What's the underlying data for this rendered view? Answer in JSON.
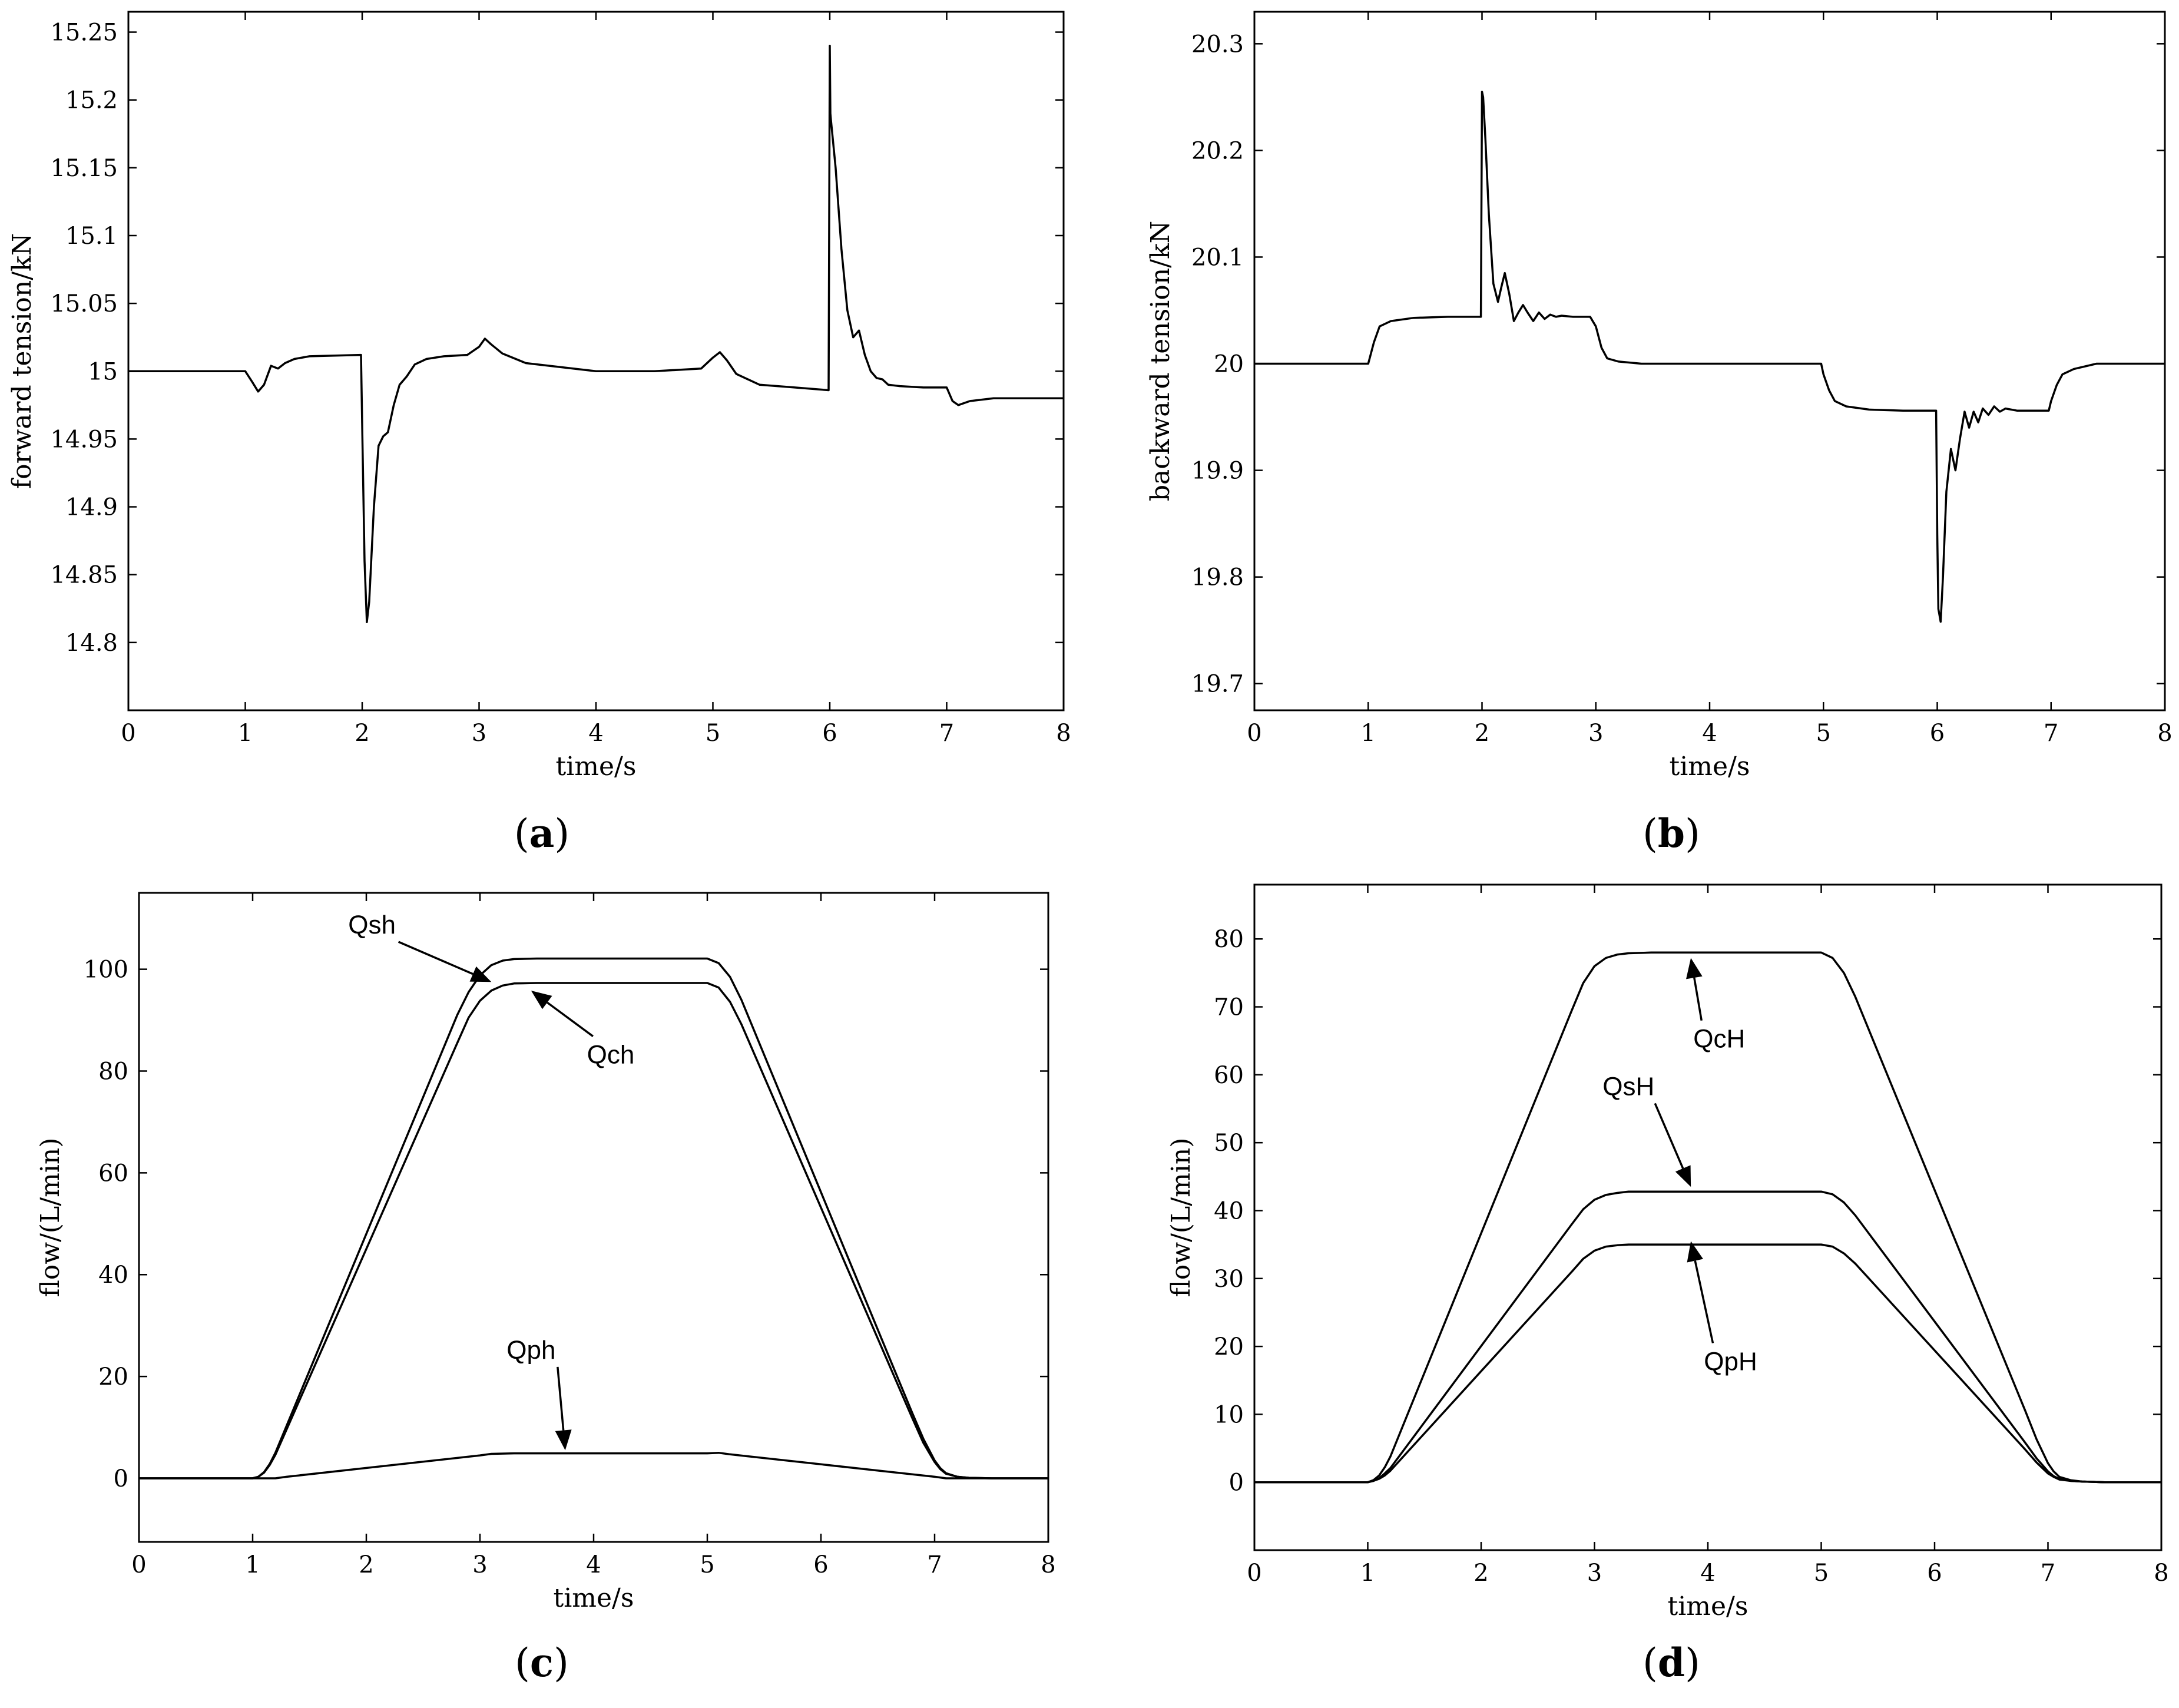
{
  "chart_data": [
    {
      "id": "a",
      "type": "line",
      "panel_label": "a",
      "xlabel": "time/s",
      "ylabel": "forward tension/kN",
      "xlim": [
        0,
        8
      ],
      "ylim": [
        14.75,
        15.265
      ],
      "xticks": [
        0,
        1,
        2,
        3,
        4,
        5,
        6,
        7,
        8
      ],
      "xtick_labels": [
        "0",
        "1",
        "2",
        "3",
        "4",
        "5",
        "6",
        "7",
        "8"
      ],
      "yticks": [
        14.8,
        14.85,
        14.9,
        14.95,
        15.0,
        15.05,
        15.1,
        15.15,
        15.2,
        15.25
      ],
      "ytick_labels": [
        "14.8",
        "14.85",
        "14.9",
        "14.95",
        "15",
        "15.05",
        "15.1",
        "15.15",
        "15.2",
        "15.25"
      ],
      "series": [
        {
          "name": "forward tension",
          "x": [
            0,
            1.0,
            1.06,
            1.11,
            1.16,
            1.22,
            1.28,
            1.34,
            1.42,
            1.55,
            1.99,
            2.0,
            2.02,
            2.04,
            2.06,
            2.1,
            2.14,
            2.18,
            2.22,
            2.27,
            2.32,
            2.38,
            2.45,
            2.55,
            2.7,
            2.9,
            3.0,
            3.05,
            3.1,
            3.2,
            3.4,
            3.7,
            4.0,
            4.5,
            4.9,
            5.0,
            5.06,
            5.12,
            5.2,
            5.4,
            5.7,
            5.99,
            6.0,
            6.005,
            6.01,
            6.05,
            6.1,
            6.15,
            6.2,
            6.25,
            6.3,
            6.35,
            6.4,
            6.45,
            6.5,
            6.6,
            6.8,
            7.0,
            7.05,
            7.1,
            7.2,
            7.4,
            8.0
          ],
          "values": [
            15.0,
            15.0,
            14.992,
            14.985,
            14.99,
            15.004,
            15.002,
            15.006,
            15.009,
            15.011,
            15.012,
            14.96,
            14.86,
            14.815,
            14.83,
            14.9,
            14.945,
            14.952,
            14.955,
            14.975,
            14.99,
            14.996,
            15.005,
            15.009,
            15.011,
            15.012,
            15.018,
            15.024,
            15.02,
            15.013,
            15.006,
            15.003,
            15.0,
            15.0,
            15.002,
            15.01,
            15.014,
            15.008,
            14.998,
            14.99,
            14.988,
            14.986,
            15.24,
            15.19,
            15.185,
            15.15,
            15.09,
            15.045,
            15.025,
            15.03,
            15.012,
            15.0,
            14.995,
            14.994,
            14.99,
            14.989,
            14.988,
            14.988,
            14.978,
            14.975,
            14.978,
            14.98,
            14.98
          ]
        }
      ]
    },
    {
      "id": "b",
      "type": "line",
      "panel_label": "b",
      "xlabel": "time/s",
      "ylabel": "backward tension/kN",
      "xlim": [
        0,
        8
      ],
      "ylim": [
        19.675,
        20.33
      ],
      "xticks": [
        0,
        1,
        2,
        3,
        4,
        5,
        6,
        7,
        8
      ],
      "xtick_labels": [
        "0",
        "1",
        "2",
        "3",
        "4",
        "5",
        "6",
        "7",
        "8"
      ],
      "yticks": [
        19.7,
        19.8,
        19.9,
        20.0,
        20.1,
        20.2,
        20.3
      ],
      "ytick_labels": [
        "19.7",
        "19.8",
        "19.9",
        "20",
        "20.1",
        "20.2",
        "20.3"
      ],
      "series": [
        {
          "name": "backward tension",
          "x": [
            0,
            1.0,
            1.05,
            1.1,
            1.2,
            1.4,
            1.7,
            1.99,
            2.0,
            2.01,
            2.03,
            2.06,
            2.1,
            2.14,
            2.17,
            2.2,
            2.24,
            2.28,
            2.32,
            2.36,
            2.4,
            2.45,
            2.5,
            2.55,
            2.6,
            2.65,
            2.7,
            2.8,
            2.95,
            3.0,
            3.05,
            3.1,
            3.2,
            3.4,
            3.7,
            4.0,
            4.5,
            4.98,
            5.0,
            5.05,
            5.1,
            5.2,
            5.4,
            5.7,
            5.99,
            6.0,
            6.01,
            6.03,
            6.05,
            6.08,
            6.12,
            6.16,
            6.2,
            6.24,
            6.28,
            6.32,
            6.36,
            6.4,
            6.45,
            6.5,
            6.55,
            6.6,
            6.7,
            6.9,
            6.98,
            7.0,
            7.05,
            7.1,
            7.2,
            7.4,
            8.0
          ],
          "values": [
            20.0,
            20.0,
            20.02,
            20.035,
            20.04,
            20.043,
            20.044,
            20.044,
            20.255,
            20.25,
            20.21,
            20.14,
            20.075,
            20.058,
            20.072,
            20.085,
            20.065,
            20.04,
            20.048,
            20.055,
            20.048,
            20.04,
            20.048,
            20.042,
            20.046,
            20.044,
            20.045,
            20.044,
            20.044,
            20.035,
            20.015,
            20.005,
            20.002,
            20.0,
            20.0,
            20.0,
            20.0,
            20.0,
            19.99,
            19.975,
            19.965,
            19.96,
            19.957,
            19.956,
            19.956,
            19.84,
            19.77,
            19.758,
            19.8,
            19.88,
            19.92,
            19.9,
            19.93,
            19.955,
            19.94,
            19.955,
            19.945,
            19.958,
            19.952,
            19.96,
            19.955,
            19.958,
            19.956,
            19.956,
            19.956,
            19.965,
            19.98,
            19.99,
            19.995,
            20.0,
            20.0
          ]
        }
      ]
    },
    {
      "id": "c",
      "type": "line",
      "panel_label": "c",
      "xlabel": "time/s",
      "ylabel": "flow/(L/min)",
      "xlim": [
        0,
        8
      ],
      "ylim": [
        -12.5,
        115
      ],
      "xticks": [
        0,
        1,
        2,
        3,
        4,
        5,
        6,
        7,
        8
      ],
      "xtick_labels": [
        "0",
        "1",
        "2",
        "3",
        "4",
        "5",
        "6",
        "7",
        "8"
      ],
      "yticks": [
        0,
        20,
        40,
        60,
        80,
        100
      ],
      "ytick_labels": [
        "0",
        "20",
        "40",
        "60",
        "80",
        "100"
      ],
      "series": [
        {
          "name": "Qsh",
          "x": [
            0,
            1.0,
            1.05,
            1.1,
            1.15,
            1.2,
            2.8,
            2.9,
            3.0,
            3.1,
            3.2,
            3.3,
            3.5,
            4.0,
            4.5,
            5.0,
            5.1,
            5.2,
            5.3,
            6.8,
            6.9,
            7.0,
            7.05,
            7.1,
            7.2,
            7.3,
            7.5,
            8.0
          ],
          "values": [
            0,
            0,
            0.3,
            1.2,
            2.8,
            5.0,
            91.0,
            95.5,
            98.8,
            100.8,
            101.7,
            102.0,
            102.1,
            102.1,
            102.1,
            102.1,
            101.2,
            98.5,
            94.0,
            13.0,
            7.8,
            3.5,
            2.0,
            1.0,
            0.3,
            0.1,
            0,
            0
          ]
        },
        {
          "name": "Qch",
          "x": [
            0,
            1.0,
            1.05,
            1.1,
            1.15,
            1.2,
            2.8,
            2.9,
            3.0,
            3.1,
            3.2,
            3.3,
            3.5,
            4.0,
            4.5,
            5.0,
            5.1,
            5.2,
            5.3,
            6.8,
            6.9,
            7.0,
            7.05,
            7.1,
            7.2,
            7.3,
            7.5,
            8.0
          ],
          "values": [
            0,
            0,
            0.3,
            1.1,
            2.6,
            4.6,
            85.5,
            90.5,
            93.8,
            95.8,
            96.8,
            97.2,
            97.3,
            97.3,
            97.3,
            97.3,
            96.4,
            93.6,
            89.2,
            12.0,
            7.0,
            3.2,
            1.8,
            0.9,
            0.3,
            0.1,
            0,
            0
          ]
        },
        {
          "name": "Qph",
          "x": [
            0,
            1.0,
            1.2,
            1.3,
            3.0,
            3.1,
            3.3,
            4.0,
            5.0,
            5.1,
            5.2,
            7.0,
            7.1,
            8.0
          ],
          "values": [
            0,
            0,
            0,
            0.3,
            4.5,
            4.8,
            4.9,
            4.9,
            4.9,
            5.0,
            4.7,
            0.3,
            0,
            0
          ]
        }
      ],
      "annotations": [
        {
          "text": "Qsh",
          "x": 2.05,
          "y": 107,
          "arrow_to": [
            3.1,
            97.5
          ]
        },
        {
          "text": "Qch",
          "x": 4.15,
          "y": 81.5,
          "arrow_to": [
            3.45,
            95.8
          ]
        },
        {
          "text": "Qph",
          "x": 3.45,
          "y": 23.5,
          "arrow_to": [
            3.75,
            5.5
          ]
        }
      ]
    },
    {
      "id": "d",
      "type": "line",
      "panel_label": "d",
      "xlabel": "time/s",
      "ylabel": "flow/(L/min)",
      "xlim": [
        0,
        8
      ],
      "ylim": [
        -10,
        88
      ],
      "xticks": [
        0,
        1,
        2,
        3,
        4,
        5,
        6,
        7,
        8
      ],
      "xtick_labels": [
        "0",
        "1",
        "2",
        "3",
        "4",
        "5",
        "6",
        "7",
        "8"
      ],
      "yticks": [
        0,
        10,
        20,
        30,
        40,
        50,
        60,
        70,
        80
      ],
      "ytick_labels": [
        "0",
        "10",
        "20",
        "30",
        "40",
        "50",
        "60",
        "70",
        "80"
      ],
      "series": [
        {
          "name": "QcH",
          "x": [
            0,
            1.0,
            1.05,
            1.1,
            1.15,
            1.2,
            2.8,
            2.9,
            3.0,
            3.1,
            3.2,
            3.3,
            3.5,
            4.0,
            4.5,
            5.0,
            5.1,
            5.2,
            5.3,
            6.8,
            6.9,
            7.0,
            7.05,
            7.1,
            7.2,
            7.3,
            7.5,
            8.0
          ],
          "values": [
            0,
            0,
            0.3,
            1.0,
            2.2,
            3.8,
            69.5,
            73.5,
            76.0,
            77.2,
            77.7,
            77.9,
            78.0,
            78.0,
            78.0,
            78.0,
            77.2,
            75.0,
            71.5,
            10.5,
            6.3,
            2.8,
            1.6,
            0.8,
            0.3,
            0.1,
            0,
            0
          ]
        },
        {
          "name": "QsH",
          "x": [
            0,
            1.0,
            1.05,
            1.1,
            1.15,
            1.2,
            2.8,
            2.9,
            3.0,
            3.1,
            3.2,
            3.3,
            3.5,
            4.0,
            4.5,
            5.0,
            5.1,
            5.2,
            5.3,
            6.8,
            6.9,
            7.0,
            7.05,
            7.1,
            7.2,
            7.3,
            7.5,
            8.0
          ],
          "values": [
            0,
            0,
            0.2,
            0.6,
            1.3,
            2.1,
            38.0,
            40.2,
            41.6,
            42.3,
            42.6,
            42.8,
            42.8,
            42.8,
            42.8,
            42.8,
            42.4,
            41.2,
            39.3,
            5.8,
            3.5,
            1.6,
            0.9,
            0.5,
            0.2,
            0.1,
            0,
            0
          ]
        },
        {
          "name": "QpH",
          "x": [
            0,
            1.0,
            1.05,
            1.1,
            1.15,
            1.2,
            2.8,
            2.9,
            3.0,
            3.1,
            3.2,
            3.3,
            3.5,
            4.0,
            4.5,
            5.0,
            5.1,
            5.2,
            5.3,
            6.8,
            6.9,
            7.0,
            7.05,
            7.1,
            7.2,
            7.3,
            7.5,
            8.0
          ],
          "values": [
            0,
            0,
            0.2,
            0.5,
            1.0,
            1.7,
            31.0,
            32.9,
            34.1,
            34.7,
            34.9,
            35.0,
            35.0,
            35.0,
            35.0,
            35.0,
            34.7,
            33.7,
            32.2,
            4.8,
            2.9,
            1.3,
            0.8,
            0.4,
            0.2,
            0.1,
            0,
            0
          ]
        }
      ],
      "annotations": [
        {
          "text": "QcH",
          "x": 4.1,
          "y": 64,
          "arrow_to": [
            3.85,
            77.2
          ]
        },
        {
          "text": "QsH",
          "x": 3.3,
          "y": 57,
          "arrow_to": [
            3.85,
            43.5
          ]
        },
        {
          "text": "QpH",
          "x": 4.2,
          "y": 16.5,
          "arrow_to": [
            3.85,
            35.5
          ]
        }
      ]
    }
  ]
}
